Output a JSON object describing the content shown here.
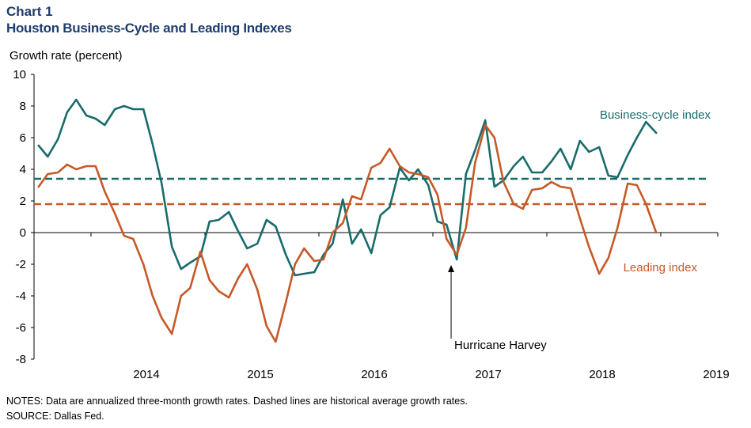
{
  "header": {
    "chart_number": "Chart 1",
    "title": "Houston Business-Cycle and Leading Indexes"
  },
  "footer": {
    "notes": "NOTES: Data are annualized three-month growth rates. Dashed lines are historical average growth rates.",
    "source": "SOURCE: Dallas Fed."
  },
  "colors": {
    "business_cycle": "#1a6b6b",
    "leading": "#c55a28",
    "title": "#1f3c6e"
  },
  "chart_data": {
    "type": "line",
    "title": "Houston Business-Cycle and Leading Indexes",
    "ylabel": "Growth rate (percent)",
    "xlabel": "",
    "ylim": [
      -8,
      10
    ],
    "yticks": [
      10,
      8,
      6,
      4,
      2,
      0,
      -2,
      -4,
      -6,
      -8
    ],
    "xlim": [
      2013.5,
      2019.5
    ],
    "xticks": [
      2014,
      2015,
      2016,
      2017,
      2018,
      2019
    ],
    "grid": false,
    "series": [
      {
        "name": "Business-cycle index",
        "style": "solid",
        "x": [
          2013.54,
          2013.62,
          2013.71,
          2013.79,
          2013.87,
          2013.96,
          2014.04,
          2014.12,
          2014.21,
          2014.29,
          2014.37,
          2014.46,
          2014.54,
          2014.62,
          2014.71,
          2014.79,
          2014.87,
          2014.96,
          2015.04,
          2015.12,
          2015.21,
          2015.29,
          2015.37,
          2015.46,
          2015.54,
          2015.62,
          2015.71,
          2015.79,
          2015.87,
          2015.96,
          2016.04,
          2016.12,
          2016.21,
          2016.29,
          2016.37,
          2016.46,
          2016.54,
          2016.62,
          2016.71,
          2016.79,
          2016.87,
          2016.96,
          2017.04,
          2017.12,
          2017.21,
          2017.29,
          2017.37,
          2017.46,
          2017.54,
          2017.62,
          2017.71,
          2017.79,
          2017.87,
          2017.96,
          2018.04,
          2018.12,
          2018.21,
          2018.29,
          2018.37,
          2018.46,
          2018.54,
          2018.62,
          2018.71,
          2018.79,
          2018.87,
          2018.96
        ],
        "y": [
          5.5,
          4.8,
          5.9,
          7.6,
          8.4,
          7.4,
          7.2,
          6.8,
          7.8,
          8.0,
          7.8,
          7.8,
          5.6,
          3.1,
          -0.9,
          -2.3,
          -1.9,
          -1.5,
          0.7,
          0.8,
          1.3,
          0.1,
          -1.0,
          -0.7,
          0.8,
          0.4,
          -1.4,
          -2.7,
          -2.6,
          -2.5,
          -1.4,
          -0.7,
          2.1,
          -0.7,
          0.2,
          -1.3,
          1.1,
          1.6,
          4.1,
          3.3,
          4.0,
          3.0,
          0.7,
          0.5,
          -1.7,
          3.7,
          5.2,
          7.1,
          2.9,
          3.3,
          4.2,
          4.8,
          3.8,
          3.8,
          4.5,
          5.3,
          4.0,
          5.8,
          5.1,
          5.4,
          3.6,
          3.5,
          4.9,
          6.0,
          7.0,
          6.3
        ]
      },
      {
        "name": "Leading index",
        "style": "solid",
        "x": [
          2013.54,
          2013.62,
          2013.71,
          2013.79,
          2013.87,
          2013.96,
          2014.04,
          2014.12,
          2014.21,
          2014.29,
          2014.37,
          2014.46,
          2014.54,
          2014.62,
          2014.71,
          2014.79,
          2014.87,
          2014.96,
          2015.04,
          2015.12,
          2015.21,
          2015.29,
          2015.37,
          2015.46,
          2015.54,
          2015.62,
          2015.71,
          2015.79,
          2015.87,
          2015.96,
          2016.04,
          2016.12,
          2016.21,
          2016.29,
          2016.37,
          2016.46,
          2016.54,
          2016.62,
          2016.71,
          2016.79,
          2016.87,
          2016.96,
          2017.04,
          2017.12,
          2017.21,
          2017.29,
          2017.37,
          2017.46,
          2017.54,
          2017.62,
          2017.71,
          2017.79,
          2017.87,
          2017.96,
          2018.04,
          2018.12,
          2018.21,
          2018.29,
          2018.37,
          2018.46,
          2018.54,
          2018.62,
          2018.71,
          2018.79,
          2018.87,
          2018.96
        ],
        "y": [
          2.9,
          3.7,
          3.8,
          4.3,
          4.0,
          4.2,
          4.2,
          2.6,
          1.2,
          -0.2,
          -0.4,
          -2.0,
          -4.0,
          -5.4,
          -6.4,
          -4.0,
          -3.5,
          -1.2,
          -3.0,
          -3.7,
          -4.1,
          -2.9,
          -2.0,
          -3.6,
          -5.9,
          -6.9,
          -4.4,
          -2.0,
          -1.0,
          -1.8,
          -1.7,
          0.0,
          0.6,
          2.3,
          2.1,
          4.1,
          4.4,
          5.3,
          4.2,
          3.8,
          3.7,
          3.5,
          2.4,
          -0.4,
          -1.4,
          0.3,
          4.4,
          6.8,
          6.0,
          3.2,
          1.8,
          1.5,
          2.7,
          2.8,
          3.2,
          2.9,
          2.8,
          0.9,
          -0.9,
          -2.6,
          -1.6,
          0.3,
          3.1,
          3.0,
          1.8,
          0.0
        ]
      }
    ],
    "reference_lines": [
      {
        "name": "Business-cycle index historical average",
        "y": 3.4,
        "style": "dashed"
      },
      {
        "name": "Leading index historical average",
        "y": 1.8,
        "style": "dashed"
      }
    ],
    "legend_labels": [
      {
        "text": "Business-cycle index",
        "series": 0
      },
      {
        "text": "Leading index",
        "series": 1
      }
    ],
    "annotations": [
      {
        "text": "Hurricane Harvey",
        "x": 2017.16,
        "y": -2.1
      }
    ]
  }
}
